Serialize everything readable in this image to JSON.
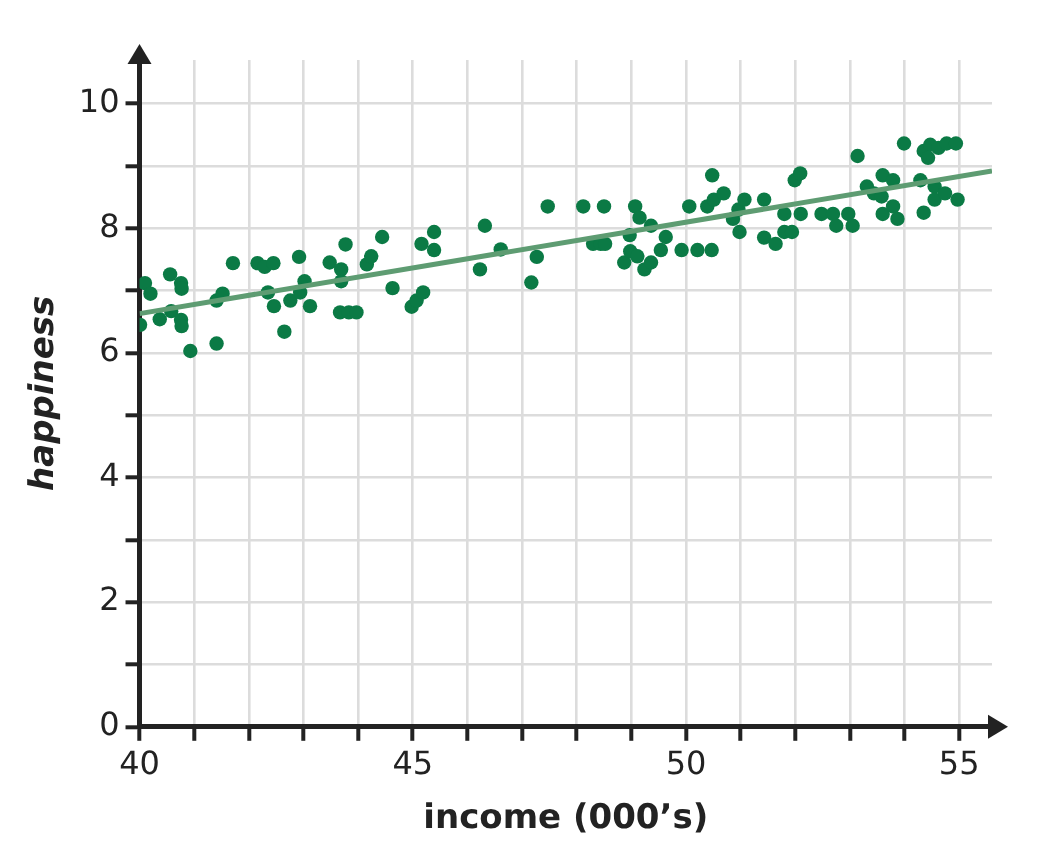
{
  "chart_data": {
    "type": "scatter",
    "xlabel": "income (000’s)",
    "ylabel": "happiness",
    "xlim": [
      40,
      55.6
    ],
    "ylim": [
      0,
      10.7
    ],
    "xticks": [
      40,
      {
        "value": 41,
        "label": null
      },
      {
        "value": 42,
        "label": null
      },
      {
        "value": 43,
        "label": null
      },
      {
        "value": 44,
        "label": null
      },
      45,
      {
        "value": 46,
        "label": null
      },
      {
        "value": 47,
        "label": null
      },
      {
        "value": 48,
        "label": null
      },
      {
        "value": 49,
        "label": null
      },
      50,
      {
        "value": 51,
        "label": null
      },
      {
        "value": 52,
        "label": null
      },
      {
        "value": 53,
        "label": null
      },
      {
        "value": 54,
        "label": null
      },
      55
    ],
    "yticks": [
      0,
      {
        "value": 1,
        "label": null
      },
      2,
      {
        "value": 3,
        "label": null
      },
      4,
      {
        "value": 5,
        "label": null
      },
      6,
      {
        "value": 7,
        "label": null
      },
      8,
      {
        "value": 9,
        "label": null
      },
      10
    ],
    "grid": true,
    "legend": false,
    "series": [
      {
        "type": "scatter",
        "color": "#0b7a45",
        "marker": "circle",
        "x": [
          40.01,
          40.1,
          40.2,
          40.37,
          40.56,
          40.58,
          40.76,
          40.77,
          40.76,
          40.77,
          40.93,
          41.41,
          41.41,
          41.52,
          41.71,
          42.16,
          42.29,
          42.45,
          42.35,
          42.46,
          42.65,
          42.76,
          42.92,
          42.94,
          43.02,
          43.12,
          43.48,
          43.69,
          43.69,
          43.77,
          43.67,
          43.83,
          43.97,
          44.16,
          44.24,
          44.44,
          44.63,
          44.98,
          45.07,
          45.19,
          45.16,
          45.39,
          45.39,
          46.23,
          46.32,
          46.61,
          47.17,
          47.27,
          47.47,
          48.12,
          48.5,
          48.3,
          48.44,
          48.52,
          48.97,
          49.07,
          49.15,
          49.36,
          48.87,
          48.98,
          49.11,
          49.24,
          49.36,
          49.54,
          49.63,
          49.92,
          50.06,
          50.21,
          50.47,
          50.48,
          50.39,
          50.51,
          50.69,
          50.86,
          50.96,
          51.07,
          50.98,
          51.43,
          51.43,
          51.64,
          51.8,
          51.8,
          51.94,
          51.99,
          52.09,
          52.1,
          52.48,
          52.69,
          52.97,
          52.75,
          53.05,
          53.14,
          53.31,
          53.44,
          53.58,
          53.6,
          53.79,
          53.6,
          53.79,
          53.87,
          53.99,
          54.29,
          54.35,
          54.35,
          54.47,
          54.43,
          54.62,
          54.77,
          54.94,
          54.55,
          54.55,
          54.74,
          54.97
        ],
        "values": [
          6.45,
          7.12,
          6.95,
          6.54,
          7.26,
          6.67,
          7.12,
          7.03,
          6.53,
          6.43,
          6.03,
          6.15,
          6.84,
          6.95,
          7.44,
          7.44,
          7.38,
          7.44,
          6.97,
          6.75,
          6.34,
          6.84,
          7.54,
          6.97,
          7.15,
          6.75,
          7.45,
          7.34,
          7.15,
          7.74,
          6.65,
          6.65,
          6.65,
          7.42,
          7.55,
          7.86,
          7.04,
          6.74,
          6.84,
          6.97,
          7.75,
          7.94,
          7.65,
          7.34,
          8.04,
          7.66,
          7.13,
          7.54,
          8.35,
          8.35,
          8.35,
          7.75,
          7.75,
          7.75,
          7.89,
          8.35,
          8.17,
          8.04,
          7.45,
          7.63,
          7.55,
          7.34,
          7.45,
          7.65,
          7.86,
          7.65,
          8.35,
          7.65,
          7.65,
          8.85,
          8.35,
          8.46,
          8.56,
          8.15,
          8.3,
          8.46,
          7.94,
          8.46,
          7.85,
          7.75,
          8.23,
          7.94,
          7.94,
          8.77,
          8.88,
          8.23,
          8.23,
          8.23,
          8.23,
          8.04,
          8.04,
          9.16,
          8.67,
          8.56,
          8.51,
          8.85,
          8.77,
          8.23,
          8.35,
          8.15,
          9.36,
          8.77,
          8.25,
          9.24,
          9.34,
          9.13,
          9.29,
          9.36,
          9.36,
          8.67,
          8.46,
          8.56,
          8.46
        ]
      },
      {
        "type": "line",
        "color": "#5e9c72",
        "marker": "none",
        "line_style": "solid",
        "x": [
          40,
          55.6
        ],
        "values": [
          6.63,
          8.92
        ]
      }
    ]
  }
}
